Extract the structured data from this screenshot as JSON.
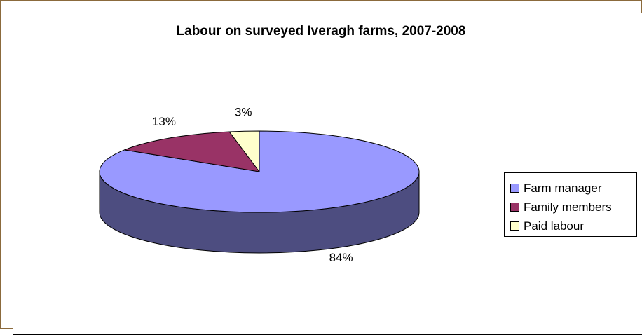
{
  "chart_data": {
    "type": "pie",
    "title": "Labour on surveyed Iveragh farms, 2007-2008",
    "categories": [
      "Farm manager",
      "Family members",
      "Paid labour"
    ],
    "values": [
      84,
      13,
      3
    ],
    "data_labels": [
      "84%",
      "13%",
      "3%"
    ],
    "colors": [
      "#9999ff",
      "#993366",
      "#ffffcc"
    ],
    "side_colors": [
      "#4d4d80",
      "#4d1a33",
      "#808066"
    ],
    "legend_position": "right",
    "three_d": true
  }
}
